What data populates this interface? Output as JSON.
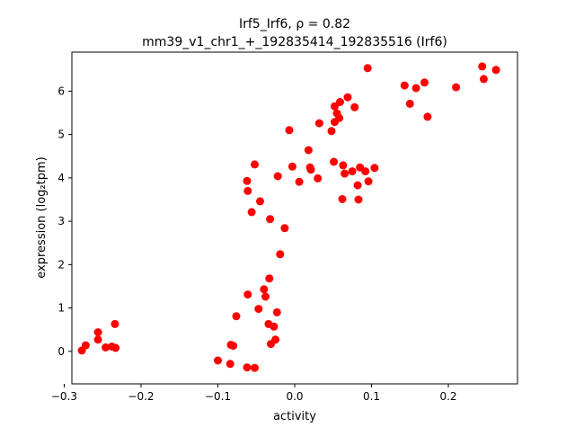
{
  "chart_data": {
    "type": "scatter",
    "title_line1": "Irf5_Irf6, ρ = 0.82",
    "title_line2": "mm39_v1_chr1_+_192835414_192835516 (Irf6)",
    "xlabel": "activity",
    "ylabel": "expression (log₂tpm)",
    "xlim": [
      -0.29,
      0.29
    ],
    "ylim": [
      -0.75,
      6.9
    ],
    "xticks": [
      -0.3,
      -0.2,
      -0.1,
      0.0,
      0.1,
      0.2
    ],
    "xtick_labels": [
      "−0.3",
      "−0.2",
      "−0.1",
      "0.0",
      "0.1",
      "0.2"
    ],
    "yticks": [
      0,
      1,
      2,
      3,
      4,
      5,
      6
    ],
    "ytick_labels": [
      "0",
      "1",
      "2",
      "3",
      "4",
      "5",
      "6"
    ],
    "grid": false,
    "marker_color": "#ff0000",
    "points": [
      [
        -0.277,
        0.02
      ],
      [
        -0.272,
        0.14
      ],
      [
        -0.256,
        0.44
      ],
      [
        -0.256,
        0.27
      ],
      [
        -0.246,
        0.09
      ],
      [
        -0.238,
        0.11
      ],
      [
        -0.234,
        0.63
      ],
      [
        -0.233,
        0.08
      ],
      [
        -0.1,
        -0.21
      ],
      [
        -0.084,
        -0.29
      ],
      [
        -0.083,
        0.15
      ],
      [
        -0.08,
        0.13
      ],
      [
        -0.076,
        0.81
      ],
      [
        -0.062,
        -0.37
      ],
      [
        -0.061,
        1.31
      ],
      [
        -0.052,
        -0.38
      ],
      [
        -0.047,
        0.98
      ],
      [
        -0.04,
        1.43
      ],
      [
        -0.038,
        1.26
      ],
      [
        -0.034,
        0.63
      ],
      [
        -0.033,
        1.68
      ],
      [
        -0.031,
        0.17
      ],
      [
        -0.027,
        0.57
      ],
      [
        -0.025,
        0.27
      ],
      [
        -0.023,
        0.9
      ],
      [
        -0.019,
        2.24
      ],
      [
        -0.013,
        2.84
      ],
      [
        -0.032,
        3.05
      ],
      [
        -0.045,
        3.46
      ],
      [
        -0.056,
        3.21
      ],
      [
        -0.061,
        3.7
      ],
      [
        -0.062,
        3.93
      ],
      [
        -0.052,
        4.31
      ],
      [
        -0.022,
        4.04
      ],
      [
        -0.007,
        5.1
      ],
      [
        -0.003,
        4.26
      ],
      [
        0.006,
        3.91
      ],
      [
        0.018,
        4.64
      ],
      [
        0.02,
        4.24
      ],
      [
        0.021,
        4.19
      ],
      [
        0.03,
        3.99
      ],
      [
        0.032,
        5.26
      ],
      [
        0.048,
        5.08
      ],
      [
        0.051,
        4.37
      ],
      [
        0.052,
        5.29
      ],
      [
        0.052,
        5.65
      ],
      [
        0.055,
        5.49
      ],
      [
        0.058,
        5.38
      ],
      [
        0.059,
        5.75
      ],
      [
        0.062,
        3.51
      ],
      [
        0.063,
        4.29
      ],
      [
        0.065,
        4.1
      ],
      [
        0.069,
        5.86
      ],
      [
        0.075,
        4.15
      ],
      [
        0.078,
        5.63
      ],
      [
        0.082,
        3.83
      ],
      [
        0.083,
        3.5
      ],
      [
        0.085,
        4.24
      ],
      [
        0.092,
        4.15
      ],
      [
        0.095,
        6.53
      ],
      [
        0.096,
        3.92
      ],
      [
        0.104,
        4.23
      ],
      [
        0.143,
        6.13
      ],
      [
        0.15,
        5.71
      ],
      [
        0.158,
        6.07
      ],
      [
        0.169,
        6.2
      ],
      [
        0.173,
        5.41
      ],
      [
        0.21,
        6.09
      ],
      [
        0.244,
        6.57
      ],
      [
        0.246,
        6.28
      ],
      [
        0.262,
        6.49
      ]
    ]
  }
}
